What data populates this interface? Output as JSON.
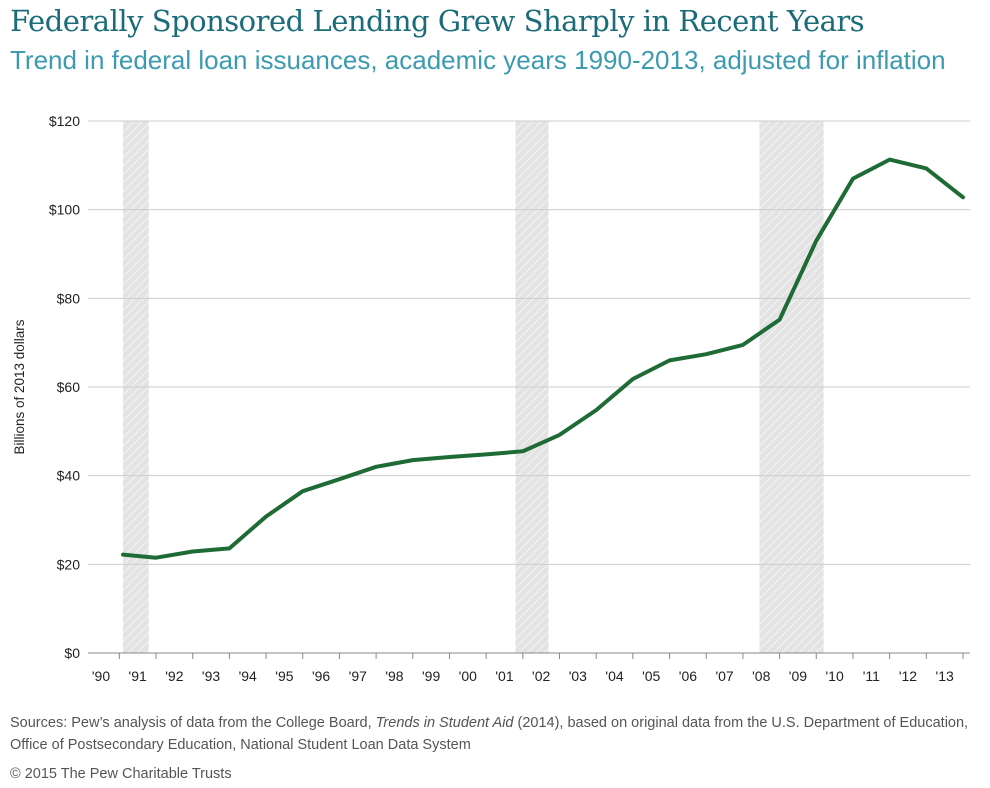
{
  "title": "Federally Sponsored Lending Grew Sharply in Recent Years",
  "subtitle": "Trend in federal loan issuances, academic years 1990-2013, adjusted for inflation",
  "sources": {
    "prefix": "Sources: Pew’s analysis of data from the College Board, ",
    "italic": "Trends in Student Aid",
    "suffix": " (2014), based on original data from the U.S. Department of Education, Office of Postsecondary Education, National Student Loan Data System"
  },
  "copyright": "© 2015 The Pew Charitable Trusts",
  "colors": {
    "line": "#1f6b35",
    "grid": "#cccccc",
    "shade": "#e3e3e3",
    "title": "#1b6c7a",
    "subtitle": "#3c9bb0"
  },
  "chart_data": {
    "type": "line",
    "ylabel": "Billions of 2013 dollars",
    "ylim": [
      0,
      120
    ],
    "yticks": [
      0,
      20,
      40,
      60,
      80,
      100,
      120
    ],
    "ytick_labels": [
      "$0",
      "$20",
      "$40",
      "$60",
      "$80",
      "$100",
      "$120"
    ],
    "xlim": [
      1990,
      2013.5
    ],
    "xticks": [
      1990,
      1991,
      1992,
      1993,
      1994,
      1995,
      1996,
      1997,
      1998,
      1999,
      2000,
      2001,
      2002,
      2003,
      2004,
      2005,
      2006,
      2007,
      2008,
      2009,
      2010,
      2011,
      2012,
      2013
    ],
    "xtick_labels": [
      "'90",
      "'91",
      "'92",
      "'93",
      "'94",
      "'95",
      "'96",
      "'97",
      "'98",
      "'99",
      "'00",
      "'01",
      "'02",
      "'03",
      "'04",
      "'05",
      "'06",
      "'07",
      "'08",
      "'09",
      "'10",
      "'11",
      "'12",
      "'13"
    ],
    "recession_bands": [
      [
        1990.6,
        1991.3
      ],
      [
        2001.3,
        2002.2
      ],
      [
        2007.95,
        2009.7
      ]
    ],
    "grid": true,
    "series": [
      {
        "x": [
          1990.6,
          1991.5,
          1992.5,
          1993.5,
          1994.5,
          1995.5,
          1996.5,
          1997.5,
          1998.5,
          1999.5,
          2000.5,
          2001.5,
          2002.5,
          2003.5,
          2004.5,
          2005.5,
          2006.5,
          2007.5,
          2008.5,
          2009.5,
          2010.5,
          2011.5,
          2012.5,
          2013.5
        ],
        "values": [
          22.2,
          21.5,
          22.9,
          23.6,
          30.8,
          36.5,
          39.2,
          42.0,
          43.5,
          44.2,
          44.8,
          45.5,
          49.2,
          54.8,
          61.8,
          66.0,
          67.4,
          69.5,
          75.2,
          93.0,
          107.0,
          111.3,
          109.3,
          102.8
        ]
      }
    ]
  }
}
